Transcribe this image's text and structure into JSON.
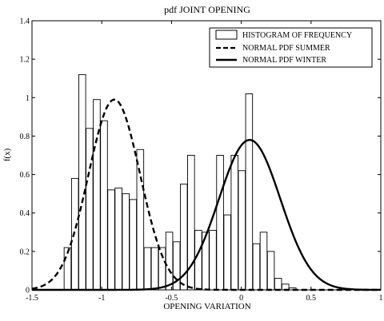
{
  "chart_data": {
    "type": "bar",
    "title": "pdf JOINT OPENING",
    "xlabel": "OPENING VARIATION",
    "ylabel": "f(x)",
    "xlim": [
      -1.5,
      1.0
    ],
    "ylim": [
      0,
      1.4
    ],
    "xticks": [
      -1.5,
      -1,
      -0.5,
      0,
      0.5,
      1
    ],
    "xtick_labels": [
      "-1.5",
      "-1",
      "-0.5",
      "0",
      "0.5",
      "1"
    ],
    "yticks": [
      0,
      0.2,
      0.4,
      0.6,
      0.8,
      1.0,
      1.2,
      1.4
    ],
    "ytick_labels": [
      "0",
      "0.2",
      "0.4",
      "0.6",
      "0.8",
      "1",
      "1.2",
      "1.4"
    ],
    "grid": false,
    "legend_position": "top-right",
    "histogram": {
      "name": "HISTOGRAM OF FREQUENCY",
      "bin_width": 0.0495,
      "bin_centers": [
        -1.245,
        -1.192,
        -1.14,
        -1.088,
        -1.036,
        -0.984,
        -0.932,
        -0.88,
        -0.828,
        -0.776,
        -0.724,
        -0.672,
        -0.62,
        -0.568,
        -0.516,
        -0.464,
        -0.412,
        -0.36,
        -0.308,
        -0.256,
        -0.204,
        -0.152,
        -0.1,
        -0.048,
        0.004,
        0.056,
        0.108,
        0.16,
        0.212,
        0.264,
        0.316,
        0.368,
        0.42,
        0.472,
        0.524,
        0.576,
        0.628,
        0.68
      ],
      "values": [
        0.22,
        0.58,
        1.12,
        0.84,
        0.99,
        0.88,
        0.52,
        0.53,
        0.5,
        0.47,
        0.73,
        0.22,
        0.22,
        0.22,
        0.3,
        0.25,
        0.55,
        0.7,
        0.31,
        0.3,
        0.31,
        0.7,
        0.39,
        0.7,
        0.62,
        1.02,
        0.24,
        0.3,
        0.2,
        0.06,
        0.03,
        0.01,
        0.0,
        0.0,
        0.0,
        0.0,
        0.0,
        0.0
      ]
    },
    "series": [
      {
        "name": "NORMAL PDF SUMMER",
        "style": "dashed",
        "distribution": "normal",
        "mean": -0.91,
        "std": 0.185,
        "peak": 0.99
      },
      {
        "name": "NORMAL PDF WINTER",
        "style": "solid",
        "distribution": "normal",
        "mean": 0.06,
        "std": 0.22,
        "peak": 0.78
      }
    ],
    "colors": {
      "axes": "#000000",
      "bar_fill": "#ffffff",
      "bar_edge": "#000000",
      "line": "#000000"
    }
  }
}
